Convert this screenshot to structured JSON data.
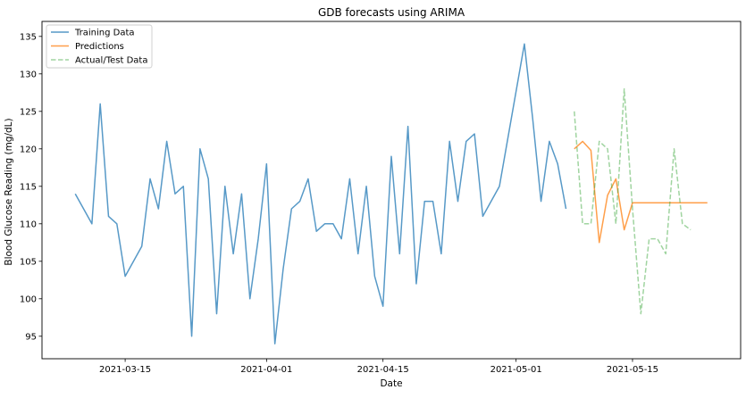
{
  "chart_data": {
    "type": "line",
    "title": "GDB forecasts using ARIMA",
    "xlabel": "Date",
    "ylabel": "Blood Glucose Reading (mg/dL)",
    "x_ticks": [
      "2021-03-15",
      "2021-04-01",
      "2021-04-15",
      "2021-05-01",
      "2021-05-15"
    ],
    "y_ticks": [
      95,
      100,
      105,
      110,
      115,
      120,
      125,
      130,
      135
    ],
    "xlim": [
      "2021-03-05",
      "2021-05-28"
    ],
    "ylim": [
      92,
      137
    ],
    "grid": false,
    "legend_position": "top-left",
    "series": [
      {
        "name": "Training Data",
        "style": "solid",
        "color": "#1f77b4",
        "points": [
          [
            "2021-03-09",
            114
          ],
          [
            "2021-03-11",
            110
          ],
          [
            "2021-03-12",
            126
          ],
          [
            "2021-03-13",
            111
          ],
          [
            "2021-03-14",
            110
          ],
          [
            "2021-03-15",
            103
          ],
          [
            "2021-03-17",
            107
          ],
          [
            "2021-03-18",
            116
          ],
          [
            "2021-03-19",
            112
          ],
          [
            "2021-03-20",
            121
          ],
          [
            "2021-03-21",
            114
          ],
          [
            "2021-03-22",
            115
          ],
          [
            "2021-03-23",
            95
          ],
          [
            "2021-03-24",
            120
          ],
          [
            "2021-03-25",
            116
          ],
          [
            "2021-03-26",
            98
          ],
          [
            "2021-03-27",
            115
          ],
          [
            "2021-03-28",
            106
          ],
          [
            "2021-03-29",
            114
          ],
          [
            "2021-03-30",
            100
          ],
          [
            "2021-03-31",
            108
          ],
          [
            "2021-04-01",
            118
          ],
          [
            "2021-04-02",
            94
          ],
          [
            "2021-04-03",
            104
          ],
          [
            "2021-04-04",
            112
          ],
          [
            "2021-04-05",
            113
          ],
          [
            "2021-04-06",
            116
          ],
          [
            "2021-04-07",
            109
          ],
          [
            "2021-04-08",
            110
          ],
          [
            "2021-04-09",
            110
          ],
          [
            "2021-04-10",
            108
          ],
          [
            "2021-04-11",
            116
          ],
          [
            "2021-04-12",
            106
          ],
          [
            "2021-04-13",
            115
          ],
          [
            "2021-04-14",
            103
          ],
          [
            "2021-04-15",
            99
          ],
          [
            "2021-04-16",
            119
          ],
          [
            "2021-04-17",
            106
          ],
          [
            "2021-04-18",
            123
          ],
          [
            "2021-04-19",
            102
          ],
          [
            "2021-04-20",
            113
          ],
          [
            "2021-04-21",
            113
          ],
          [
            "2021-04-22",
            106
          ],
          [
            "2021-04-23",
            121
          ],
          [
            "2021-04-24",
            113
          ],
          [
            "2021-04-25",
            121
          ],
          [
            "2021-04-26",
            122
          ],
          [
            "2021-04-27",
            111
          ],
          [
            "2021-04-29",
            115
          ],
          [
            "2021-05-02",
            134
          ],
          [
            "2021-05-03",
            124
          ],
          [
            "2021-05-04",
            113
          ],
          [
            "2021-05-05",
            121
          ],
          [
            "2021-05-06",
            118
          ],
          [
            "2021-05-07",
            112
          ]
        ]
      },
      {
        "name": "Predictions",
        "style": "solid",
        "color": "#ff7f0e",
        "points": [
          [
            "2021-05-08",
            120
          ],
          [
            "2021-05-09",
            121
          ],
          [
            "2021-05-10",
            119.8
          ],
          [
            "2021-05-11",
            107.5
          ],
          [
            "2021-05-12",
            113.8
          ],
          [
            "2021-05-13",
            116
          ],
          [
            "2021-05-14",
            109.2
          ],
          [
            "2021-05-15",
            112.8
          ],
          [
            "2021-05-16",
            112.8
          ],
          [
            "2021-05-17",
            112.8
          ],
          [
            "2021-05-18",
            112.8
          ],
          [
            "2021-05-19",
            112.8
          ],
          [
            "2021-05-20",
            112.8
          ],
          [
            "2021-05-21",
            112.8
          ],
          [
            "2021-05-22",
            112.8
          ],
          [
            "2021-05-23",
            112.8
          ],
          [
            "2021-05-24",
            112.8
          ]
        ]
      },
      {
        "name": "Actual/Test Data",
        "style": "dashed",
        "color": "#2ca02c",
        "points": [
          [
            "2021-05-08",
            125
          ],
          [
            "2021-05-09",
            110
          ],
          [
            "2021-05-10",
            110
          ],
          [
            "2021-05-11",
            121
          ],
          [
            "2021-05-12",
            120
          ],
          [
            "2021-05-13",
            110
          ],
          [
            "2021-05-14",
            128
          ],
          [
            "2021-05-15",
            112
          ],
          [
            "2021-05-16",
            98
          ],
          [
            "2021-05-17",
            108
          ],
          [
            "2021-05-18",
            108
          ],
          [
            "2021-05-19",
            106
          ],
          [
            "2021-05-20",
            120
          ],
          [
            "2021-05-21",
            110
          ],
          [
            "2021-05-22",
            109.2
          ]
        ]
      }
    ]
  }
}
